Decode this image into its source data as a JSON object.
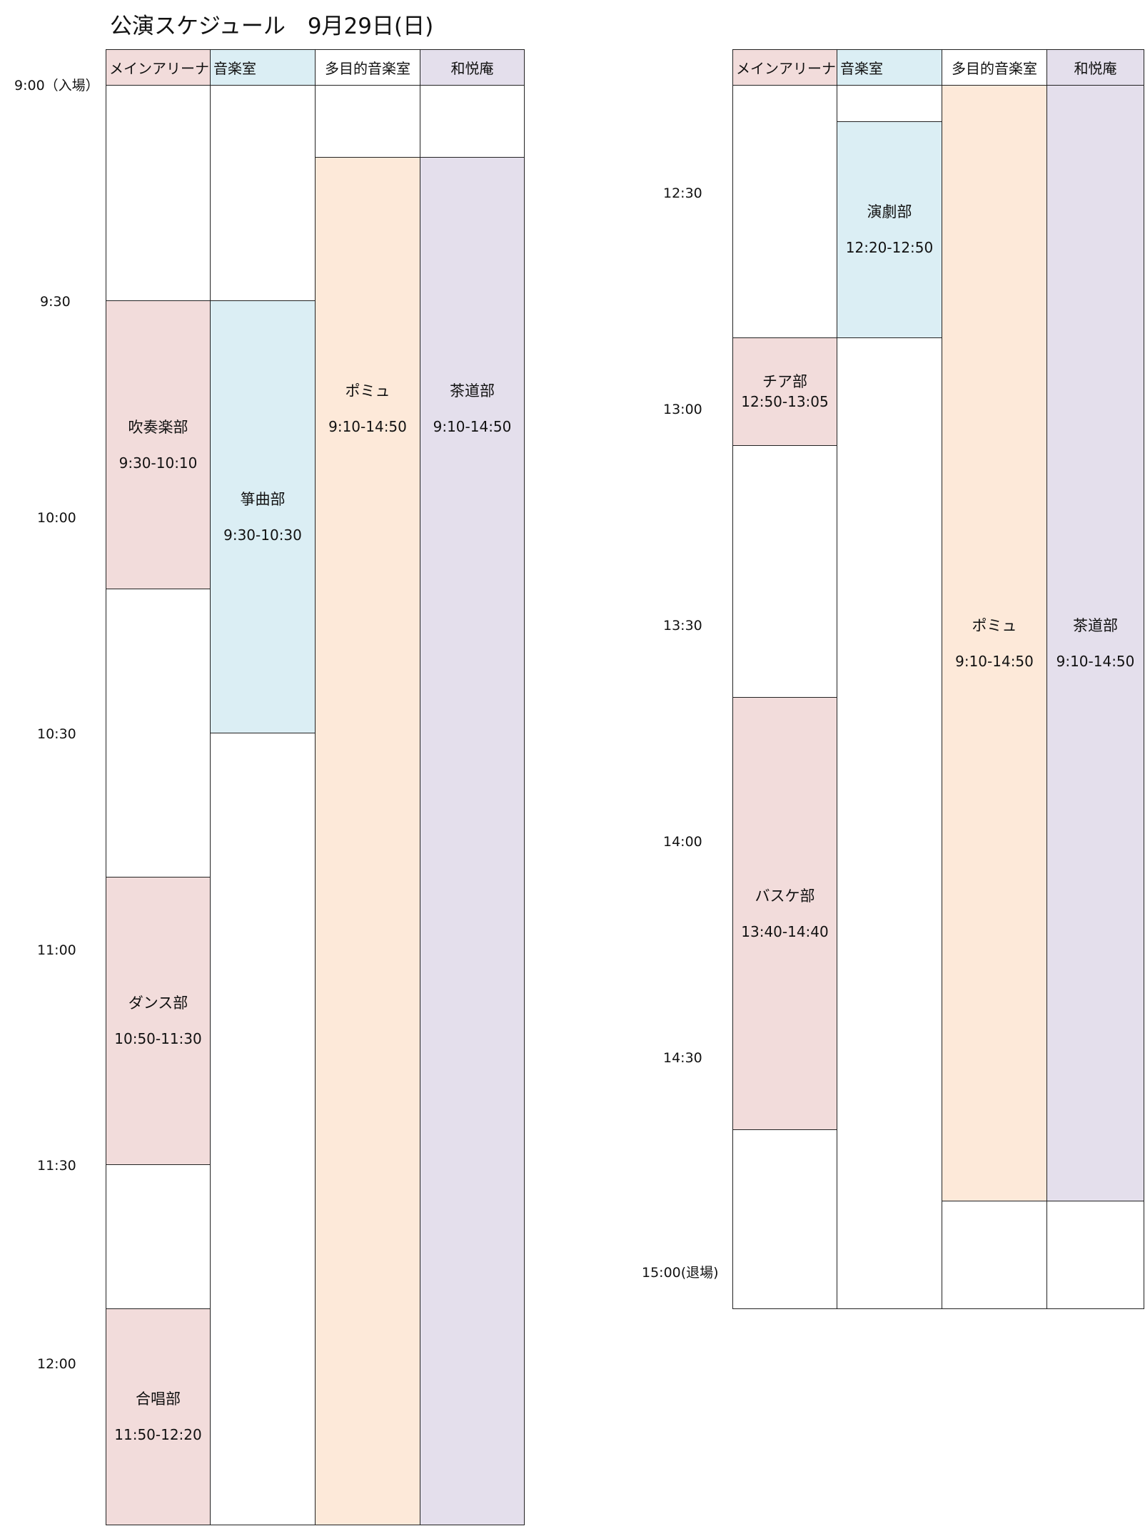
{
  "title": "公演スケジュール　9月29日(日)",
  "colors": {
    "main_arena": "#f2dcdb",
    "music_room": "#dbeef4",
    "multi_music_room": "#fde9d9",
    "waetsuan": "#e4dfec",
    "empty": "#ffffff"
  },
  "headers": [
    "メインアリーナ",
    "音楽室",
    "多目的音楽室",
    "和悦庵"
  ],
  "time_labels_left": [
    "9:00（入場）",
    "9:30",
    "10:00",
    "10:30",
    "11:00",
    "11:30",
    "12:00"
  ],
  "time_labels_right": [
    "12:30",
    "13:00",
    "13:30",
    "14:00",
    "14:30",
    "15:00(退場)"
  ],
  "left_schedule": {
    "main_arena": [
      {
        "name": "",
        "time": ""
      },
      {
        "name": "吹奏楽部",
        "time": "9:30-10:10"
      },
      {
        "name": "",
        "time": ""
      },
      {
        "name": "ダンス部",
        "time": "10:50-11:30"
      },
      {
        "name": "",
        "time": ""
      },
      {
        "name": "合唱部",
        "time": "11:50-12:20"
      }
    ],
    "music_room": [
      {
        "name": "",
        "time": ""
      },
      {
        "name": "箏曲部",
        "time": "9:30-10:30"
      },
      {
        "name": "",
        "time": ""
      }
    ],
    "multi_music_room": [
      {
        "name": "",
        "time": ""
      },
      {
        "name": "ポミュ",
        "time": "9:10-14:50"
      }
    ],
    "waetsuan": [
      {
        "name": "",
        "time": ""
      },
      {
        "name": "茶道部",
        "time": "9:10-14:50"
      }
    ]
  },
  "right_schedule": {
    "main_arena": [
      {
        "name": "",
        "time": ""
      },
      {
        "name": "チア部",
        "time": "12:50-13:05"
      },
      {
        "name": "",
        "time": ""
      },
      {
        "name": "バスケ部",
        "time": "13:40-14:40"
      },
      {
        "name": "",
        "time": ""
      }
    ],
    "music_room": [
      {
        "name": "",
        "time": ""
      },
      {
        "name": "演劇部",
        "time": "12:20-12:50"
      },
      {
        "name": "",
        "time": ""
      }
    ],
    "multi_music_room": [
      {
        "name": "ポミュ",
        "time": "9:10-14:50"
      },
      {
        "name": "",
        "time": ""
      }
    ],
    "waetsuan": [
      {
        "name": "茶道部",
        "time": "9:10-14:50"
      },
      {
        "name": "",
        "time": ""
      }
    ]
  }
}
